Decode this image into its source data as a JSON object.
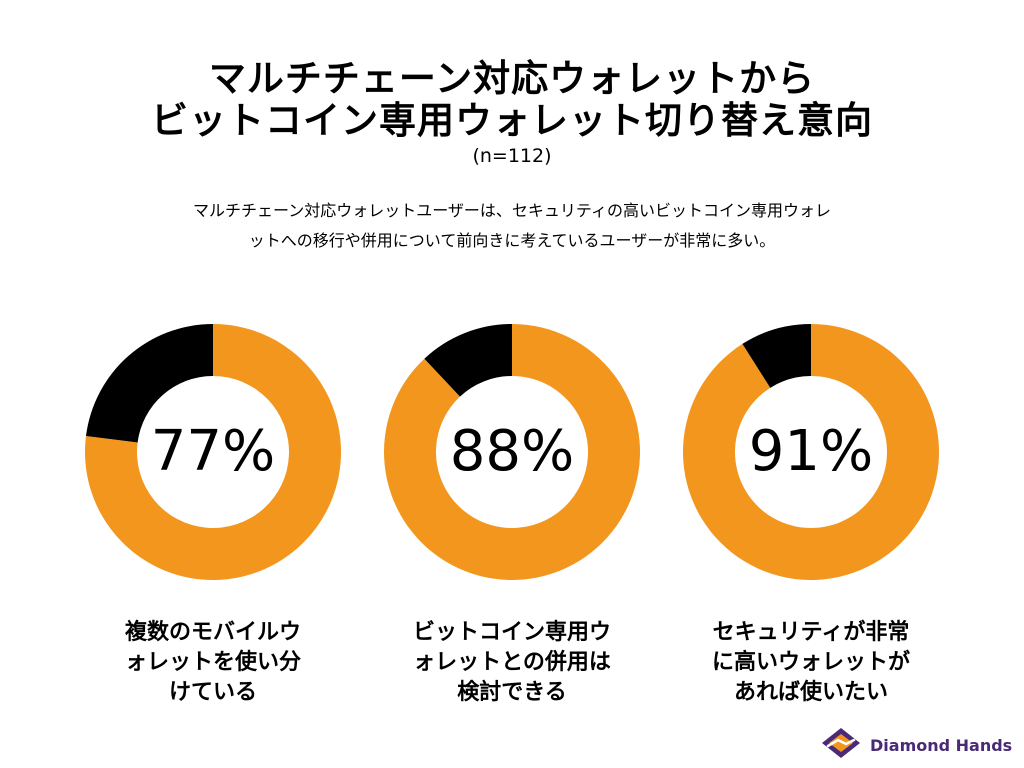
{
  "title": {
    "line1": "マルチチェーン対応ウォレットから",
    "line2": "ビットコイン専用ウォレット切り替え意向",
    "n": "(n=112)"
  },
  "description": {
    "line1": "マルチチェーン対応ウォレットユーザーは、セキュリティの高いビットコイン専用ウォレ",
    "line2": "ットへの移行や併用について前向きに考えているユーザーが非常に多い。"
  },
  "colors": {
    "positive": "#F2961E",
    "negative": "#000000",
    "brand": "#4A2A77"
  },
  "chart_data": [
    {
      "type": "pie",
      "donut": true,
      "label": "77%",
      "caption": [
        "複数のモバイルウ",
        "ォレットを使い分",
        "けている"
      ],
      "values": [
        77,
        23
      ]
    },
    {
      "type": "pie",
      "donut": true,
      "label": "88%",
      "caption": [
        "ビットコイン専用ウ",
        "ォレットとの併用は",
        "検討できる"
      ],
      "values": [
        88,
        12
      ]
    },
    {
      "type": "pie",
      "donut": true,
      "label": "91%",
      "caption": [
        "セキュリティが非常",
        "に高いウォレットが",
        "あれば使いたい"
      ],
      "values": [
        91,
        9
      ]
    }
  ],
  "brand": {
    "name": "Diamond Hands",
    "logo_icon": "diamond-hands-logo-icon"
  }
}
